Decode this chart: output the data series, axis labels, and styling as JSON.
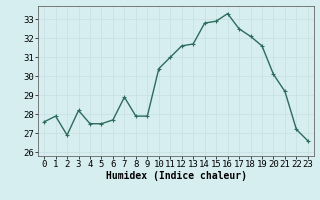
{
  "x": [
    0,
    1,
    2,
    3,
    4,
    5,
    6,
    7,
    8,
    9,
    10,
    11,
    12,
    13,
    14,
    15,
    16,
    17,
    18,
    19,
    20,
    21,
    22,
    23
  ],
  "y": [
    27.6,
    27.9,
    26.9,
    28.2,
    27.5,
    27.5,
    27.7,
    28.9,
    27.9,
    27.9,
    30.4,
    31.0,
    31.6,
    31.7,
    32.8,
    32.9,
    33.3,
    32.5,
    32.1,
    31.6,
    30.1,
    29.2,
    27.2,
    26.6
  ],
  "line_color": "#2d6b5e",
  "marker": "+",
  "marker_size": 3,
  "bg_color": "#d6eef0",
  "grid_color": "#c8dfe2",
  "xlabel": "Humidex (Indice chaleur)",
  "ylim": [
    25.8,
    33.7
  ],
  "xlim": [
    -0.5,
    23.5
  ],
  "yticks": [
    26,
    27,
    28,
    29,
    30,
    31,
    32,
    33
  ],
  "xticks": [
    0,
    1,
    2,
    3,
    4,
    5,
    6,
    7,
    8,
    9,
    10,
    11,
    12,
    13,
    14,
    15,
    16,
    17,
    18,
    19,
    20,
    21,
    22,
    23
  ],
  "xlabel_fontsize": 7,
  "tick_fontsize": 6.5,
  "linewidth": 1.0
}
